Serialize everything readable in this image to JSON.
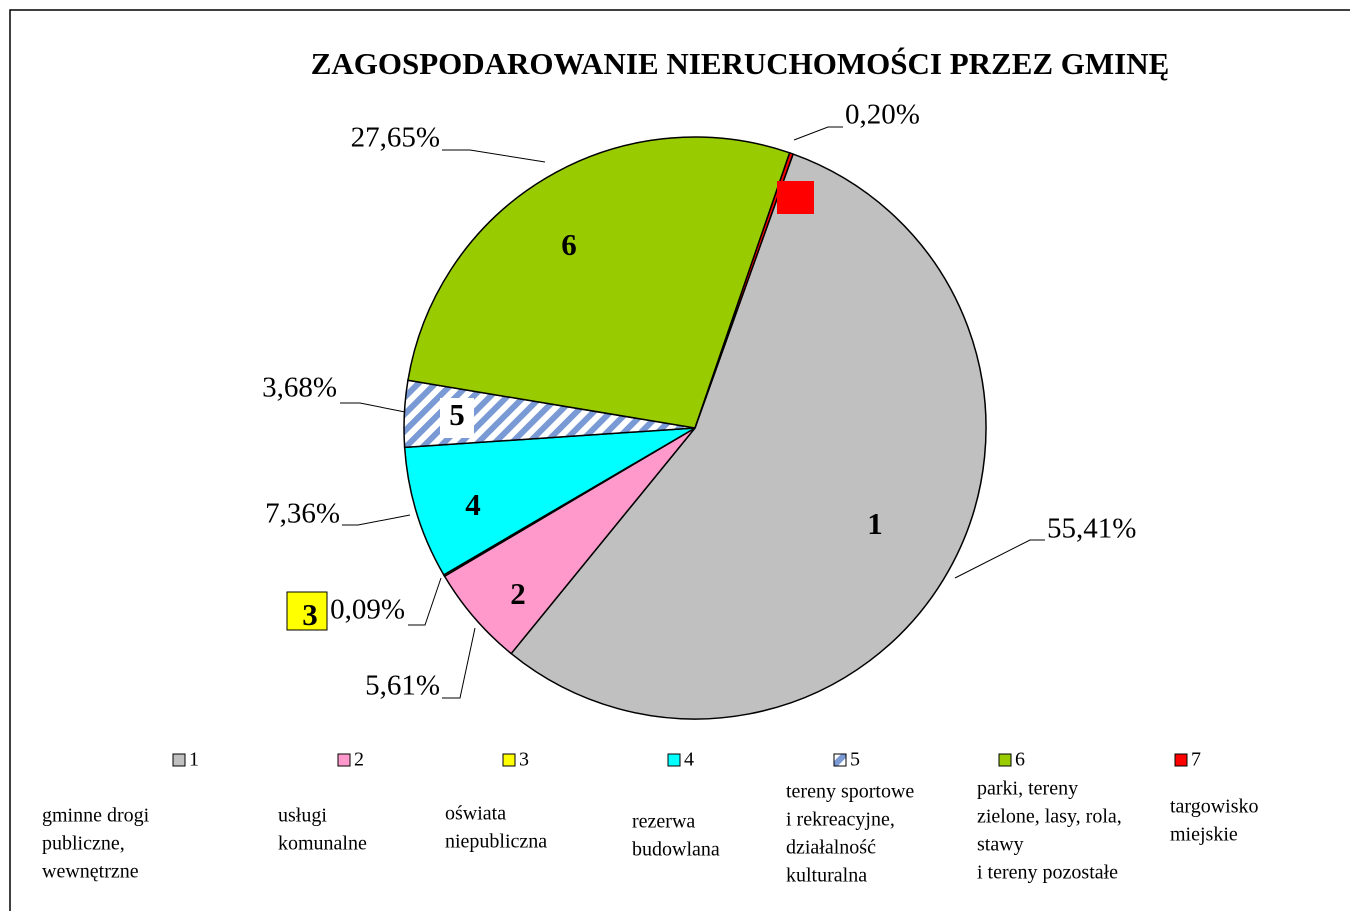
{
  "chart_data": {
    "type": "pie",
    "title": "ZAGOSPODAROWANIE NIERUCHOMOŚCI PRZEZ GMINĘ",
    "categories": [
      "1",
      "2",
      "3",
      "4",
      "5",
      "6",
      "7"
    ],
    "values": [
      55.41,
      5.61,
      0.09,
      7.36,
      3.68,
      27.65,
      0.2
    ],
    "value_labels": [
      "55,41%",
      "5,61%",
      "0,09%",
      "7,36%",
      "3,68%",
      "27,65%",
      "0,20%"
    ],
    "colors": [
      "#c0c0c0",
      "#ff99cc",
      "#ffff00",
      "#00ffff",
      "#7a9ad6",
      "#99cc00",
      "#ff0000"
    ],
    "fills": [
      "solid",
      "solid",
      "solid",
      "solid",
      "hatch",
      "solid",
      "solid"
    ],
    "descriptions": [
      [
        "gminne drogi",
        "publiczne,",
        "wewnętrzne"
      ],
      [
        "usługi",
        "komunalne"
      ],
      [
        "oświata",
        "niepubliczna"
      ],
      [
        "rezerwa",
        "budowlana"
      ],
      [
        "tereny sportowe",
        "i rekreacyjne,",
        "działalność",
        "kulturalna"
      ],
      [
        "parki, tereny",
        "zielone, lasy, rola,",
        "stawy",
        "i tereny pozostałe"
      ],
      [
        "targowisko",
        "miejskie"
      ]
    ],
    "legend": "bottom"
  }
}
